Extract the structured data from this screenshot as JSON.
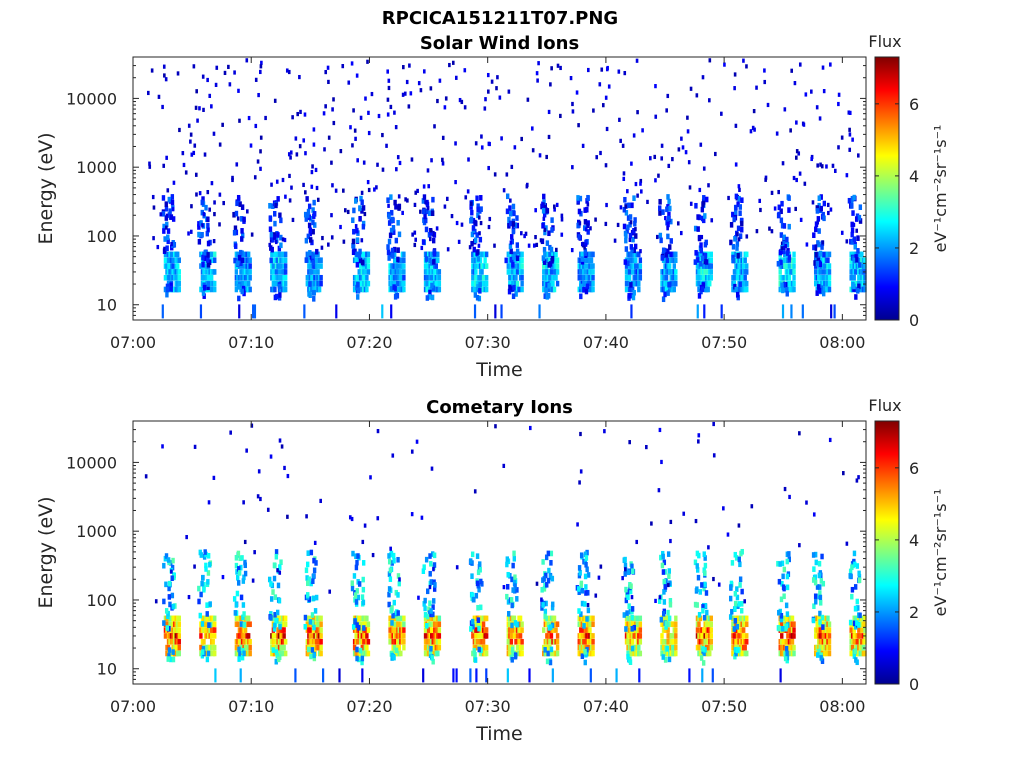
{
  "figure_title": "RPCICA151211T07.PNG",
  "chart_data": [
    {
      "type": "heatmap",
      "title": "Solar Wind Ions",
      "xlabel": "Time",
      "ylabel": "Energy (eV)",
      "x_ticks": [
        "07:00",
        "07:10",
        "07:20",
        "07:30",
        "07:40",
        "07:50",
        "08:00"
      ],
      "xlim": [
        "07:00",
        "08:02"
      ],
      "y_scale": "log",
      "y_ticks": [
        10,
        100,
        1000,
        10000
      ],
      "y_tick_labels": [
        "10",
        "100",
        "1000",
        "10000"
      ],
      "ylim": [
        6,
        40000
      ],
      "colorbar": {
        "title": "Flux",
        "label": "eV⁻¹cm⁻²sr⁻¹s⁻¹",
        "ticks": [
          0,
          2,
          4,
          6
        ],
        "range": [
          0,
          7.3
        ],
        "colormap": "jet"
      },
      "bursts": [
        {
          "t": "07:03",
          "e": 30,
          "flux": 2.5
        },
        {
          "t": "07:06",
          "e": 30,
          "flux": 2.6
        },
        {
          "t": "07:09",
          "e": 30,
          "flux": 2.3
        },
        {
          "t": "07:12",
          "e": 30,
          "flux": 2.5
        },
        {
          "t": "07:15",
          "e": 30,
          "flux": 2.2
        },
        {
          "t": "07:19",
          "e": 30,
          "flux": 2.6
        },
        {
          "t": "07:22",
          "e": 30,
          "flux": 2.4
        },
        {
          "t": "07:25",
          "e": 30,
          "flux": 2.5
        },
        {
          "t": "07:29",
          "e": 30,
          "flux": 2.6
        },
        {
          "t": "07:32",
          "e": 30,
          "flux": 2.5
        },
        {
          "t": "07:35",
          "e": 30,
          "flux": 2.6
        },
        {
          "t": "07:38",
          "e": 30,
          "flux": 2.3
        },
        {
          "t": "07:42",
          "e": 30,
          "flux": 2.2
        },
        {
          "t": "07:45",
          "e": 30,
          "flux": 2.4
        },
        {
          "t": "07:48",
          "e": 30,
          "flux": 2.6
        },
        {
          "t": "07:51",
          "e": 30,
          "flux": 2.5
        },
        {
          "t": "07:55",
          "e": 30,
          "flux": 2.7
        },
        {
          "t": "07:58",
          "e": 30,
          "flux": 2.4
        },
        {
          "t": "08:01",
          "e": 30,
          "flux": 2.5
        }
      ]
    },
    {
      "type": "heatmap",
      "title": "Cometary Ions",
      "xlabel": "Time",
      "ylabel": "Energy (eV)",
      "x_ticks": [
        "07:00",
        "07:10",
        "07:20",
        "07:30",
        "07:40",
        "07:50",
        "08:00"
      ],
      "xlim": [
        "07:00",
        "08:02"
      ],
      "y_scale": "log",
      "y_ticks": [
        10,
        100,
        1000,
        10000
      ],
      "y_tick_labels": [
        "10",
        "100",
        "1000",
        "10000"
      ],
      "ylim": [
        6,
        40000
      ],
      "colorbar": {
        "title": "Flux",
        "label": "eV⁻¹cm⁻²sr⁻¹s⁻¹",
        "ticks": [
          0,
          2,
          4,
          6
        ],
        "range": [
          0,
          7.3
        ],
        "colormap": "jet"
      },
      "bursts": [
        {
          "t": "07:03",
          "e": 30,
          "flux": 5.8
        },
        {
          "t": "07:06",
          "e": 30,
          "flux": 5.5
        },
        {
          "t": "07:09",
          "e": 30,
          "flux": 5.6
        },
        {
          "t": "07:12",
          "e": 30,
          "flux": 5.8
        },
        {
          "t": "07:15",
          "e": 30,
          "flux": 5.6
        },
        {
          "t": "07:19",
          "e": 30,
          "flux": 5.7
        },
        {
          "t": "07:22",
          "e": 30,
          "flux": 5.6
        },
        {
          "t": "07:25",
          "e": 30,
          "flux": 5.5
        },
        {
          "t": "07:29",
          "e": 30,
          "flux": 5.8
        },
        {
          "t": "07:32",
          "e": 30,
          "flux": 5.6
        },
        {
          "t": "07:35",
          "e": 30,
          "flux": 5.7
        },
        {
          "t": "07:38",
          "e": 30,
          "flux": 5.6
        },
        {
          "t": "07:42",
          "e": 30,
          "flux": 5.3
        },
        {
          "t": "07:45",
          "e": 30,
          "flux": 5.0
        },
        {
          "t": "07:48",
          "e": 30,
          "flux": 5.6
        },
        {
          "t": "07:51",
          "e": 30,
          "flux": 5.8
        },
        {
          "t": "07:55",
          "e": 30,
          "flux": 5.7
        },
        {
          "t": "07:58",
          "e": 30,
          "flux": 5.6
        },
        {
          "t": "08:01",
          "e": 30,
          "flux": 5.4
        }
      ]
    }
  ]
}
